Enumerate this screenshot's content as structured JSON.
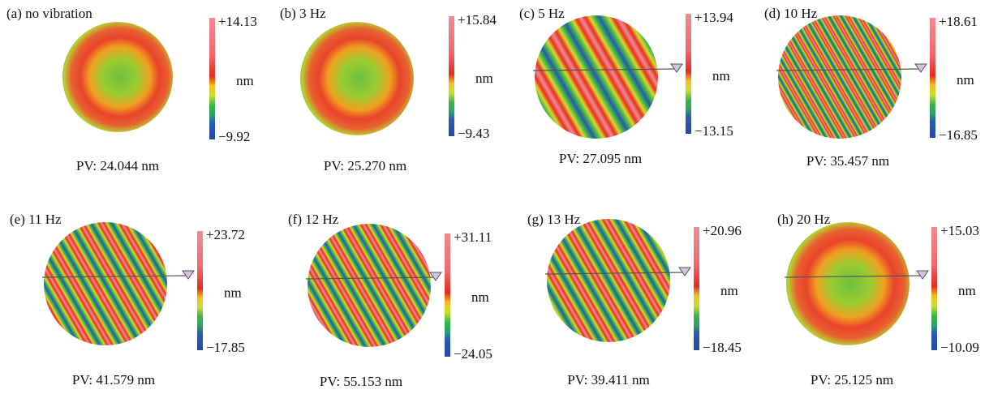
{
  "panels": [
    {
      "label": "(a) no vibration",
      "max": "+14.13",
      "unit": "nm",
      "min": "−9.92",
      "pv": "PV: 24.044 nm"
    },
    {
      "label": "(b) 3 Hz",
      "max": "+15.84",
      "unit": "nm",
      "min": "−9.43",
      "pv": "PV: 25.270 nm"
    },
    {
      "label": "(c) 5 Hz",
      "max": "+13.94",
      "unit": "nm",
      "min": "−13.15",
      "pv": "PV: 27.095 nm"
    },
    {
      "label": "(d) 10 Hz",
      "max": "+18.61",
      "unit": "nm",
      "min": "−16.85",
      "pv": "PV: 35.457 nm"
    },
    {
      "label": "(e) 11 Hz",
      "max": "+23.72",
      "unit": "nm",
      "min": "−17.85",
      "pv": "PV: 41.579 nm"
    },
    {
      "label": "(f) 12 Hz",
      "max": "+31.11",
      "unit": "nm",
      "min": "−24.05",
      "pv": "PV: 55.153 nm"
    },
    {
      "label": "(g) 13 Hz",
      "max": "+20.96",
      "unit": "nm",
      "min": "−18.45",
      "pv": "PV: 39.411 nm"
    },
    {
      "label": "(h) 20 Hz",
      "max": "+15.03",
      "unit": "nm",
      "min": "−10.09",
      "pv": "PV: 25.125 nm"
    }
  ]
}
